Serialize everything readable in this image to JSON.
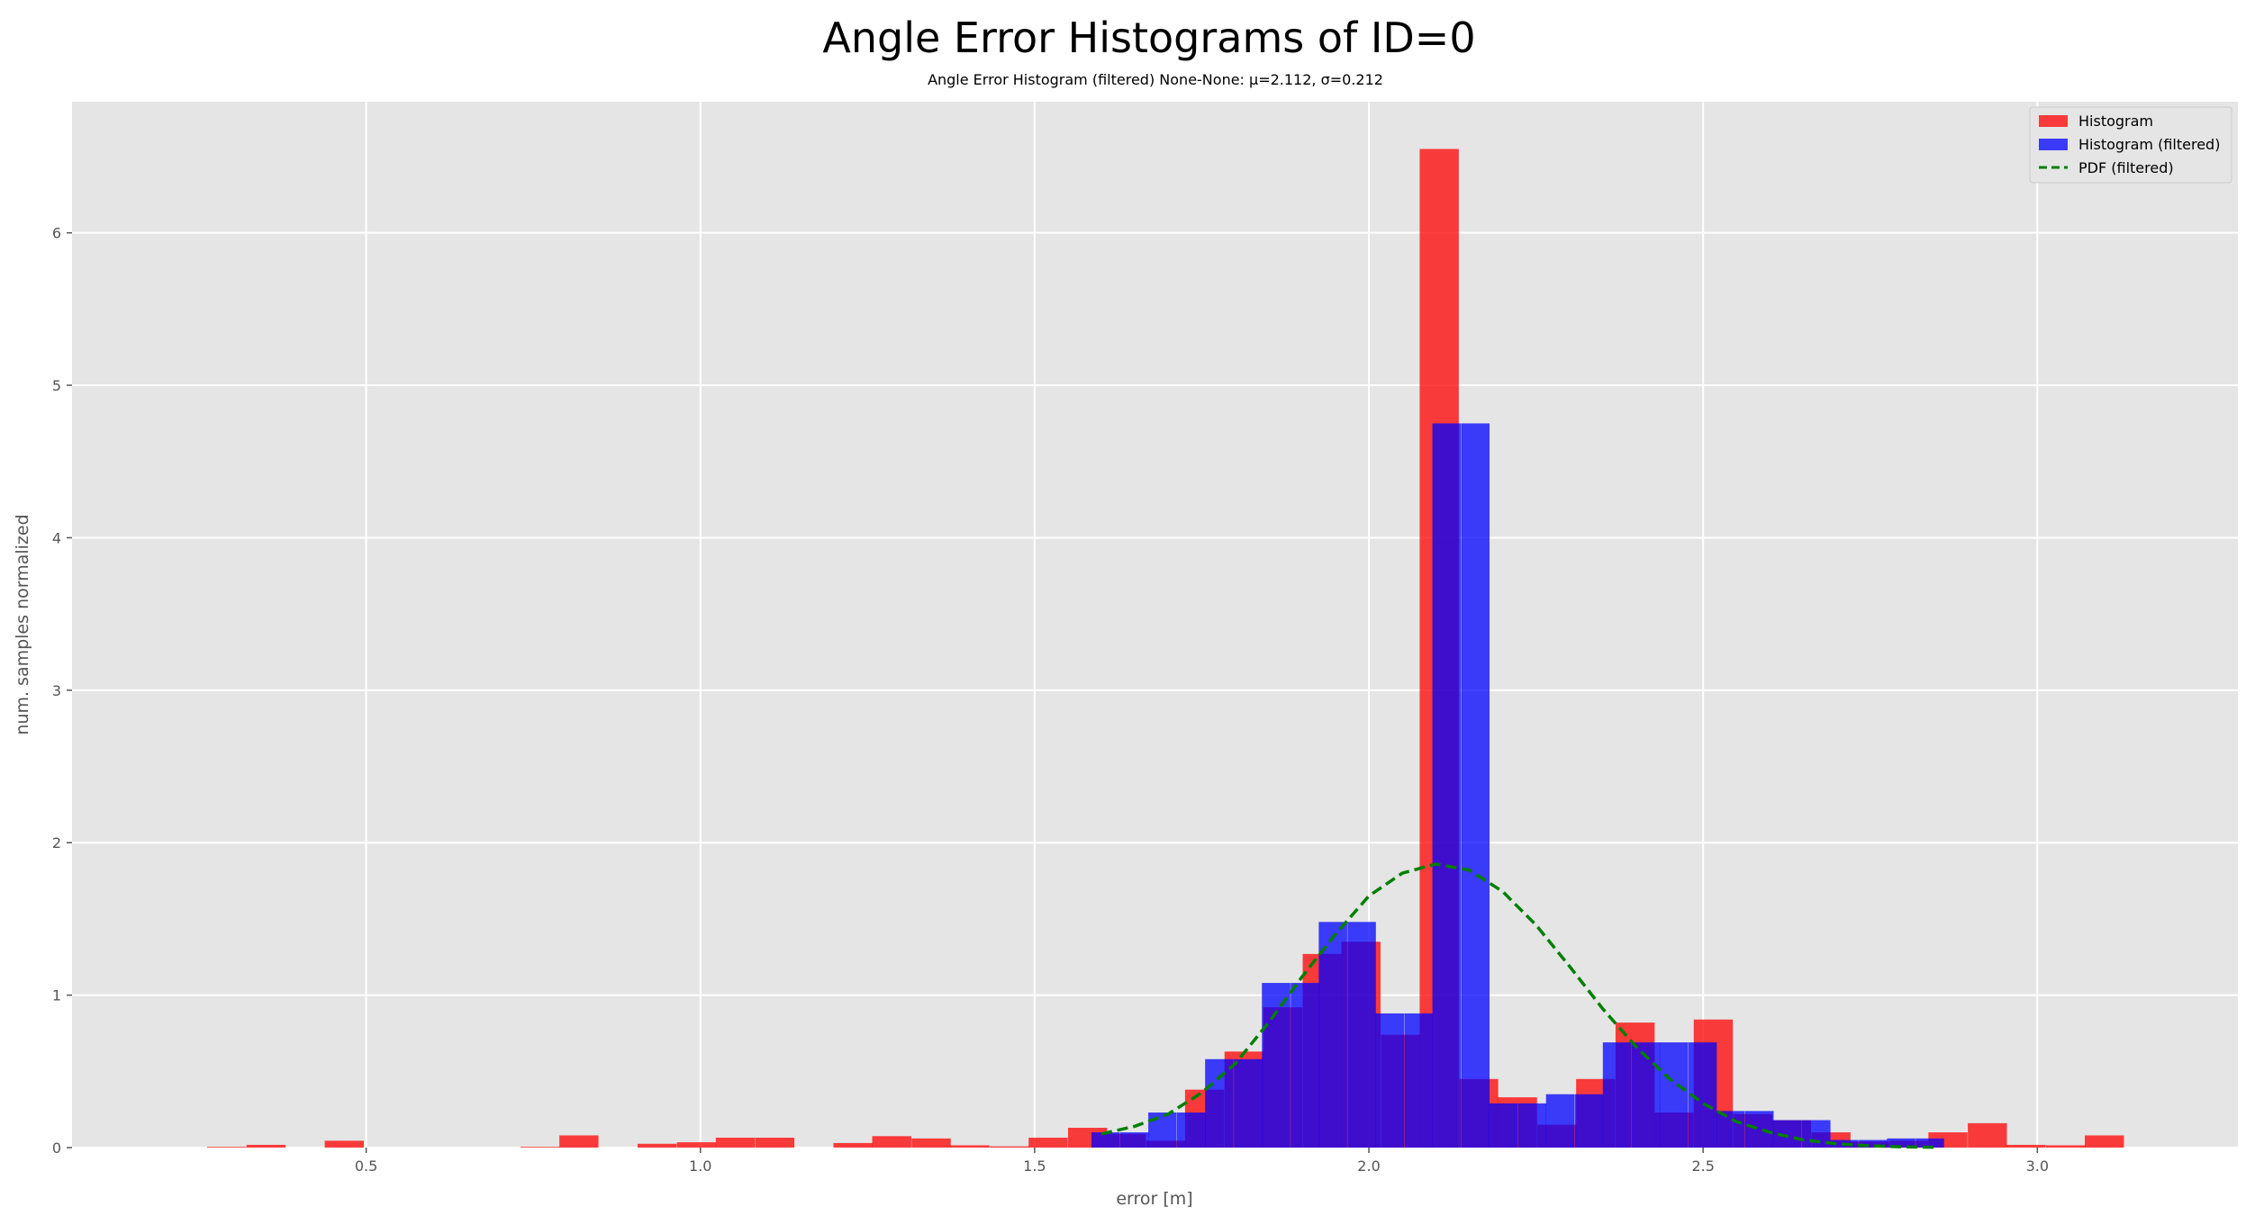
{
  "chart_data": {
    "type": "bar",
    "title": "Angle Error Histograms of ID=0",
    "subtitle": "Angle Error Histogram (filtered) None-None: μ=2.112, σ=0.212",
    "xlabel": "error [m]",
    "ylabel": "num. samples normalized",
    "xlim": [
      0.06,
      3.3
    ],
    "ylim": [
      0,
      6.86
    ],
    "xticks": [
      0.5,
      1.0,
      1.5,
      2.0,
      2.5,
      3.0
    ],
    "xtick_labels": [
      "0.5",
      "1.0",
      "1.5",
      "2.0",
      "2.5",
      "3.0"
    ],
    "yticks": [
      0,
      1,
      2,
      3,
      4,
      5,
      6
    ],
    "ytick_labels": [
      "0",
      "1",
      "2",
      "3",
      "4",
      "5",
      "6"
    ],
    "grid": true,
    "legend_position": "top-right",
    "series": [
      {
        "name": "Histogram",
        "type": "bar",
        "color": "#ff0000",
        "opacity": 0.75,
        "bin_width": 0.0585,
        "bins": [
          [
            0.262,
            0.005
          ],
          [
            0.321,
            0.018
          ],
          [
            0.438,
            0.045
          ],
          [
            0.731,
            0.005
          ],
          [
            0.789,
            0.08
          ],
          [
            0.906,
            0.025
          ],
          [
            0.965,
            0.035
          ],
          [
            1.023,
            0.065
          ],
          [
            1.082,
            0.065
          ],
          [
            1.199,
            0.03
          ],
          [
            1.257,
            0.075
          ],
          [
            1.316,
            0.06
          ],
          [
            1.374,
            0.015
          ],
          [
            1.433,
            0.008
          ],
          [
            1.491,
            0.065
          ],
          [
            1.55,
            0.13
          ],
          [
            1.608,
            0.09
          ],
          [
            1.667,
            0.045
          ],
          [
            1.725,
            0.38
          ],
          [
            1.784,
            0.63
          ],
          [
            1.842,
            0.92
          ],
          [
            1.901,
            1.27
          ],
          [
            1.959,
            1.35
          ],
          [
            2.018,
            0.74
          ],
          [
            2.076,
            6.55
          ],
          [
            2.135,
            0.45
          ],
          [
            2.193,
            0.33
          ],
          [
            2.252,
            0.15
          ],
          [
            2.31,
            0.45
          ],
          [
            2.369,
            0.82
          ],
          [
            2.427,
            0.23
          ],
          [
            2.486,
            0.84
          ],
          [
            2.545,
            0.22
          ],
          [
            2.603,
            0.18
          ],
          [
            2.662,
            0.1
          ],
          [
            2.72,
            0.04
          ],
          [
            2.779,
            0.045
          ],
          [
            2.837,
            0.1
          ],
          [
            2.896,
            0.16
          ],
          [
            2.954,
            0.018
          ],
          [
            3.013,
            0.015
          ],
          [
            3.071,
            0.08
          ]
        ]
      },
      {
        "name": "Histogram (filtered)",
        "type": "bar",
        "color": "#0000ff",
        "opacity": 0.75,
        "bin_width": 0.0425,
        "bins": [
          [
            1.585,
            0.1
          ],
          [
            1.628,
            0.1
          ],
          [
            1.67,
            0.23
          ],
          [
            1.713,
            0.23
          ],
          [
            1.755,
            0.58
          ],
          [
            1.798,
            0.58
          ],
          [
            1.84,
            1.08
          ],
          [
            1.883,
            1.08
          ],
          [
            1.925,
            1.48
          ],
          [
            1.968,
            1.48
          ],
          [
            2.01,
            0.88
          ],
          [
            2.053,
            0.88
          ],
          [
            2.095,
            4.75
          ],
          [
            2.138,
            4.75
          ],
          [
            2.18,
            0.29
          ],
          [
            2.223,
            0.29
          ],
          [
            2.265,
            0.35
          ],
          [
            2.308,
            0.35
          ],
          [
            2.35,
            0.69
          ],
          [
            2.393,
            0.69
          ],
          [
            2.435,
            0.69
          ],
          [
            2.478,
            0.69
          ],
          [
            2.52,
            0.24
          ],
          [
            2.563,
            0.24
          ],
          [
            2.605,
            0.18
          ],
          [
            2.648,
            0.18
          ],
          [
            2.69,
            0.05
          ],
          [
            2.733,
            0.05
          ],
          [
            2.775,
            0.06
          ],
          [
            2.818,
            0.06
          ]
        ]
      },
      {
        "name": "PDF (filtered)",
        "type": "line",
        "style": "dashed",
        "color": "#007f00",
        "x": [
          1.6,
          1.65,
          1.7,
          1.75,
          1.8,
          1.85,
          1.9,
          1.95,
          2.0,
          2.05,
          2.1,
          2.15,
          2.2,
          2.25,
          2.3,
          2.35,
          2.4,
          2.45,
          2.5,
          2.55,
          2.6,
          2.65,
          2.7,
          2.75,
          2.8,
          2.85
        ],
        "y": [
          0.09,
          0.14,
          0.22,
          0.36,
          0.55,
          0.82,
          1.12,
          1.4,
          1.65,
          1.8,
          1.86,
          1.82,
          1.68,
          1.46,
          1.19,
          0.91,
          0.66,
          0.45,
          0.29,
          0.17,
          0.1,
          0.05,
          0.025,
          0.012,
          0.005,
          0.002
        ]
      }
    ]
  }
}
